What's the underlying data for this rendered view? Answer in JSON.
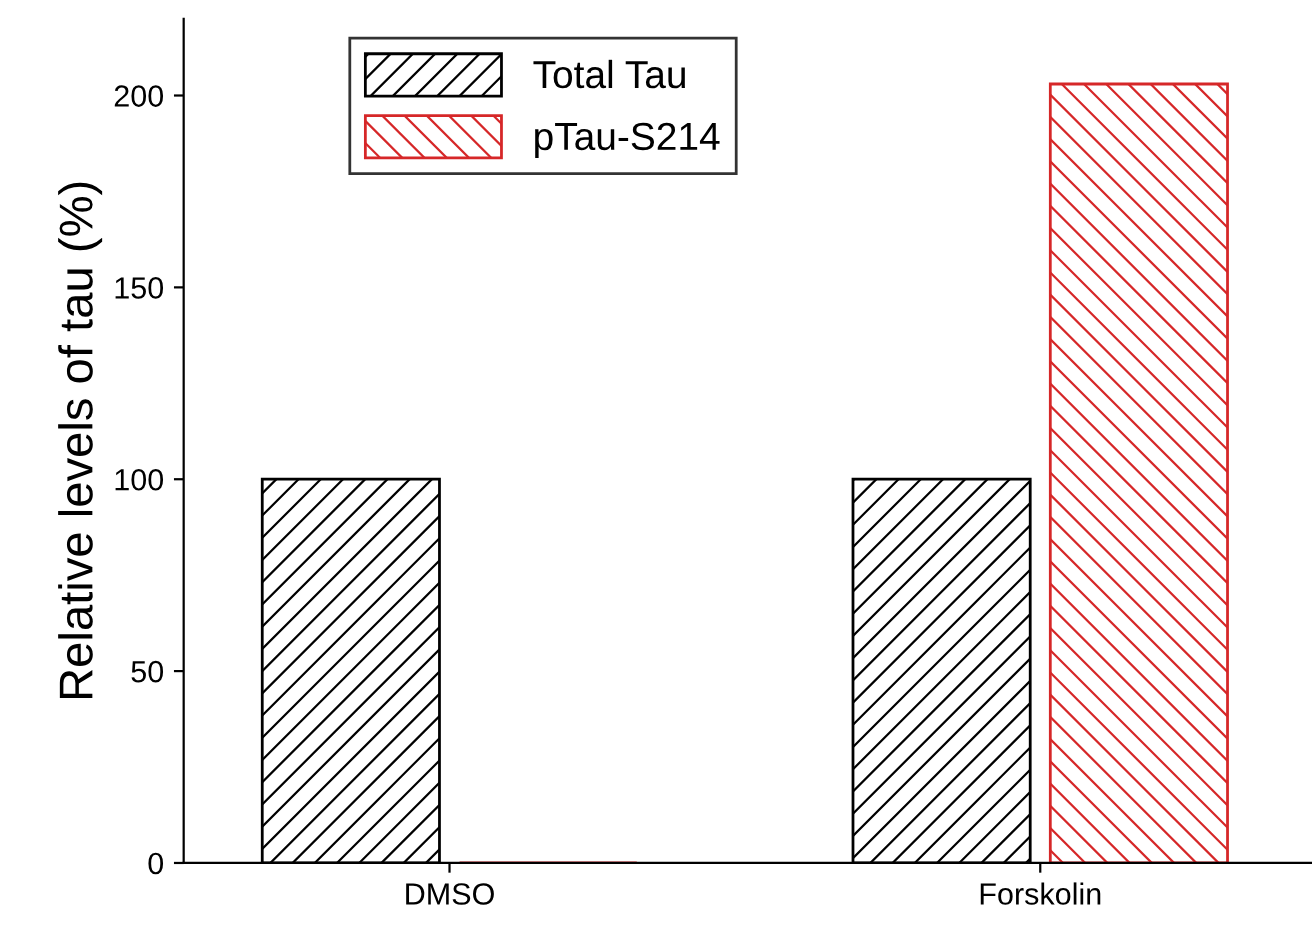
{
  "chart_data": {
    "type": "bar",
    "ylabel": "Relative levels of tau (%)",
    "categories": [
      "DMSO",
      "Forskolin"
    ],
    "series": [
      {
        "name": "Total Tau",
        "color": "#000000",
        "values": [
          100,
          100
        ]
      },
      {
        "name": "pTau-S214",
        "color": "#d62728",
        "values": [
          0,
          203
        ]
      }
    ],
    "ylim": [
      0,
      220
    ],
    "yticks": [
      0,
      50,
      100,
      150,
      200
    ],
    "grid": false,
    "legend": "top left"
  }
}
